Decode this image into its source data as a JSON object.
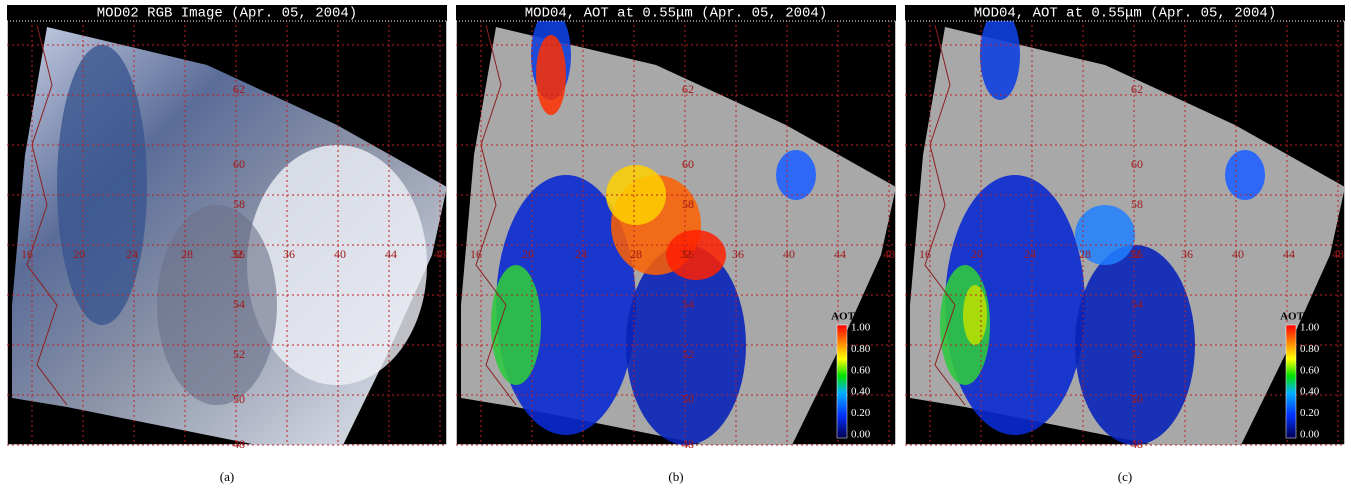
{
  "panels": [
    {
      "title": "MOD02 RGB Image (Apr. 05, 2004)",
      "caption": "(a)",
      "lat_labels": [
        "62",
        "60",
        "58",
        "56",
        "54",
        "52",
        "50",
        "48"
      ],
      "lon_labels": [
        "16",
        "20",
        "24",
        "28",
        "32",
        "36",
        "40",
        "44",
        "48"
      ]
    },
    {
      "title": "MOD04, AOT at 0.55μm (Apr. 05, 2004)",
      "caption": "(b)",
      "lat_labels": [
        "62",
        "60",
        "58",
        "56",
        "54",
        "52",
        "50",
        "48"
      ],
      "lon_labels": [
        "16",
        "20",
        "24",
        "28",
        "32",
        "36",
        "40",
        "44",
        "48"
      ],
      "colorbar": {
        "label": "AOT",
        "ticks": [
          "1.00",
          "0.80",
          "0.60",
          "0.40",
          "0.20",
          "0.00"
        ]
      }
    },
    {
      "title": "MOD04, AOT at 0.55μm (Apr. 05, 2004)",
      "caption": "(c)",
      "lat_labels": [
        "62",
        "60",
        "58",
        "56",
        "54",
        "52",
        "50",
        "48"
      ],
      "lon_labels": [
        "16",
        "20",
        "24",
        "28",
        "32",
        "36",
        "40",
        "44",
        "48"
      ],
      "colorbar": {
        "label": "AOT",
        "ticks": [
          "1.00",
          "0.80",
          "0.60",
          "0.40",
          "0.20",
          "0.00"
        ]
      }
    }
  ]
}
